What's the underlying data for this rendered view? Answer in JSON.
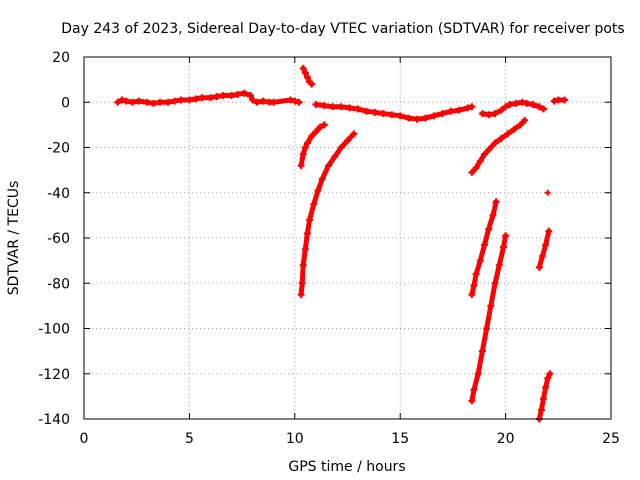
{
  "chart_data": {
    "type": "scatter",
    "title": "Day 243 of 2023, Sidereal Day-to-day VTEC variation (SDTVAR) for receiver pots",
    "xlabel": "GPS time / hours",
    "ylabel": "SDTVAR / TECUs",
    "xlim": [
      0,
      25
    ],
    "ylim": [
      -140,
      20
    ],
    "xticks": [
      0,
      5,
      10,
      15,
      20,
      25
    ],
    "yticks": [
      20,
      0,
      -20,
      -40,
      -60,
      -80,
      -100,
      -120,
      -140
    ],
    "grid": true,
    "marker": "+",
    "color": "#ff0000",
    "series": [
      {
        "points": [
          [
            1.6,
            0
          ],
          [
            1.8,
            1
          ],
          [
            2.0,
            0.5
          ],
          [
            2.3,
            0
          ],
          [
            2.6,
            0.5
          ],
          [
            3.0,
            0
          ],
          [
            3.3,
            -0.5
          ],
          [
            3.6,
            0
          ],
          [
            4.0,
            0
          ],
          [
            4.3,
            0.5
          ],
          [
            4.6,
            1
          ],
          [
            5.0,
            1
          ],
          [
            5.3,
            1.5
          ],
          [
            5.6,
            2
          ],
          [
            6.0,
            2
          ],
          [
            6.3,
            2.5
          ],
          [
            6.6,
            3
          ],
          [
            7.0,
            3
          ],
          [
            7.3,
            3.5
          ],
          [
            7.6,
            4
          ],
          [
            7.9,
            3
          ],
          [
            8.0,
            1
          ],
          [
            8.2,
            0
          ],
          [
            8.5,
            0.5
          ],
          [
            8.8,
            0
          ],
          [
            9.0,
            0
          ],
          [
            9.8,
            1
          ],
          [
            10.0,
            0.5
          ],
          [
            10.2,
            0
          ]
        ]
      },
      {
        "points": [
          [
            10.4,
            15
          ],
          [
            10.5,
            13
          ],
          [
            10.6,
            11
          ],
          [
            10.7,
            9
          ],
          [
            10.8,
            8
          ]
        ]
      },
      {
        "points": [
          [
            11.0,
            -1
          ],
          [
            11.4,
            -1.5
          ],
          [
            11.8,
            -2
          ],
          [
            12.2,
            -2
          ],
          [
            12.6,
            -2.5
          ],
          [
            13.0,
            -3
          ],
          [
            13.4,
            -4
          ],
          [
            13.8,
            -4.5
          ],
          [
            14.2,
            -5
          ],
          [
            14.6,
            -5.5
          ],
          [
            15.0,
            -6
          ],
          [
            15.4,
            -7
          ],
          [
            15.8,
            -7.5
          ],
          [
            16.2,
            -7
          ],
          [
            16.6,
            -6
          ],
          [
            17.0,
            -5
          ],
          [
            17.4,
            -4
          ],
          [
            17.8,
            -3.5
          ],
          [
            18.2,
            -2.5
          ],
          [
            18.4,
            -2
          ]
        ]
      },
      {
        "points": [
          [
            10.3,
            -28
          ],
          [
            10.4,
            -23
          ],
          [
            10.5,
            -20
          ],
          [
            10.6,
            -18
          ],
          [
            10.8,
            -15
          ],
          [
            11.0,
            -13
          ],
          [
            11.2,
            -11
          ],
          [
            11.4,
            -10
          ]
        ]
      },
      {
        "points": [
          [
            10.3,
            -85
          ],
          [
            10.35,
            -80
          ],
          [
            10.4,
            -72
          ],
          [
            10.5,
            -65
          ],
          [
            10.6,
            -58
          ],
          [
            10.7,
            -52
          ],
          [
            10.9,
            -45
          ],
          [
            11.1,
            -39
          ],
          [
            11.3,
            -34
          ],
          [
            11.6,
            -28
          ],
          [
            11.9,
            -24
          ],
          [
            12.2,
            -20
          ],
          [
            12.5,
            -17
          ],
          [
            12.8,
            -14
          ]
        ]
      },
      {
        "points": [
          [
            18.4,
            -31
          ],
          [
            18.6,
            -29
          ],
          [
            18.8,
            -26
          ],
          [
            19.0,
            -23
          ],
          [
            19.2,
            -21
          ],
          [
            19.5,
            -18
          ],
          [
            19.8,
            -16
          ],
          [
            20.1,
            -14
          ],
          [
            20.4,
            -12
          ],
          [
            20.7,
            -10
          ],
          [
            20.9,
            -8
          ]
        ]
      },
      {
        "points": [
          [
            18.9,
            -5
          ],
          [
            19.2,
            -5.5
          ],
          [
            19.5,
            -5
          ],
          [
            19.8,
            -3.5
          ],
          [
            20.0,
            -2
          ],
          [
            20.2,
            -1
          ],
          [
            20.5,
            -0.5
          ],
          [
            20.8,
            0
          ],
          [
            21.0,
            -0.5
          ],
          [
            21.3,
            -1
          ],
          [
            21.6,
            -2
          ],
          [
            21.8,
            -3
          ]
        ]
      },
      {
        "points": [
          [
            22.3,
            0.5
          ],
          [
            22.5,
            1
          ],
          [
            22.8,
            1
          ]
        ]
      },
      {
        "points": [
          [
            18.4,
            -85
          ],
          [
            18.5,
            -81
          ],
          [
            18.6,
            -76
          ],
          [
            18.8,
            -70
          ],
          [
            19.0,
            -63
          ],
          [
            19.2,
            -56
          ],
          [
            19.4,
            -50
          ],
          [
            19.55,
            -44
          ]
        ]
      },
      {
        "points": [
          [
            18.4,
            -132
          ],
          [
            18.5,
            -127
          ],
          [
            18.7,
            -120
          ],
          [
            18.9,
            -110
          ],
          [
            19.1,
            -100
          ],
          [
            19.3,
            -90
          ],
          [
            19.5,
            -80
          ],
          [
            19.7,
            -72
          ],
          [
            19.9,
            -64
          ],
          [
            20.0,
            -59
          ]
        ]
      },
      {
        "points": [
          [
            21.6,
            -73
          ],
          [
            21.75,
            -68
          ],
          [
            21.9,
            -63
          ],
          [
            22.05,
            -57
          ]
        ]
      },
      {
        "points": [
          [
            22.0,
            -40
          ]
        ]
      },
      {
        "points": [
          [
            21.6,
            -140
          ],
          [
            21.7,
            -136
          ],
          [
            21.8,
            -131
          ],
          [
            21.9,
            -126
          ],
          [
            22.0,
            -122
          ],
          [
            22.1,
            -120
          ]
        ]
      }
    ]
  }
}
